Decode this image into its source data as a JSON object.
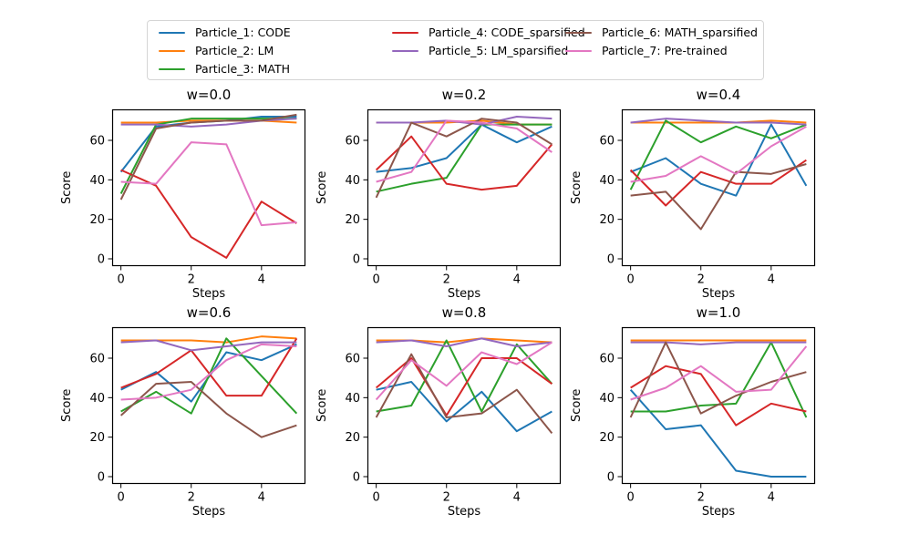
{
  "legend": {
    "position": "top-center",
    "ncol": 3,
    "items": [
      {
        "label": "Particle_1: CODE",
        "color": "#1f77b4"
      },
      {
        "label": "Particle_2: LM",
        "color": "#ff7f0e"
      },
      {
        "label": "Particle_3: MATH",
        "color": "#2ca02c"
      },
      {
        "label": "Particle_4: CODE_sparsified",
        "color": "#d62728"
      },
      {
        "label": "Particle_5: LM_sparsified",
        "color": "#9467bd"
      },
      {
        "label": "Particle_6: MATH_sparsified",
        "color": "#8c564b"
      },
      {
        "label": "Particle_7: Pre-trained",
        "color": "#e377c2"
      }
    ]
  },
  "axes": {
    "xlabel": "Steps",
    "ylabel": "Score",
    "xticks": [
      0,
      2,
      4
    ],
    "yticks": [
      0,
      20,
      40,
      60
    ],
    "xlim": [
      -0.25,
      5.25
    ],
    "ylim": [
      -3.7,
      75.7
    ],
    "grid": false
  },
  "chart_data": [
    {
      "type": "line",
      "title": "w=0.0",
      "xlabel": "Steps",
      "ylabel": "Score",
      "x": [
        0,
        1,
        2,
        3,
        4,
        5
      ],
      "series": [
        {
          "name": "Particle_1: CODE",
          "values": [
            44,
            67,
            69,
            70,
            72,
            72
          ]
        },
        {
          "name": "Particle_2: LM",
          "values": [
            69,
            69,
            70,
            70,
            70,
            69
          ]
        },
        {
          "name": "Particle_3: MATH",
          "values": [
            33,
            68,
            71,
            71,
            71,
            71
          ]
        },
        {
          "name": "Particle_4: CODE_sparsified",
          "values": [
            45,
            37,
            11,
            0.5,
            29,
            18
          ]
        },
        {
          "name": "Particle_5: LM_sparsified",
          "values": [
            68,
            68,
            67,
            68,
            70,
            71
          ]
        },
        {
          "name": "Particle_6: MATH_sparsified",
          "values": [
            30,
            66,
            69,
            70,
            70,
            73
          ]
        },
        {
          "name": "Particle_7: Pre-trained",
          "values": [
            39,
            38,
            59,
            58,
            17,
            18.5
          ]
        }
      ]
    },
    {
      "type": "line",
      "title": "w=0.2",
      "xlabel": "Steps",
      "ylabel": "Score",
      "x": [
        0,
        1,
        2,
        3,
        4,
        5
      ],
      "series": [
        {
          "name": "Particle_1: CODE",
          "values": [
            44,
            46,
            51,
            68,
            59,
            67
          ]
        },
        {
          "name": "Particle_2: LM",
          "values": [
            69,
            69,
            69,
            70,
            68,
            68
          ]
        },
        {
          "name": "Particle_3: MATH",
          "values": [
            34,
            38,
            41,
            68,
            68,
            68
          ]
        },
        {
          "name": "Particle_4: CODE_sparsified",
          "values": [
            45,
            62,
            38,
            35,
            37,
            58
          ]
        },
        {
          "name": "Particle_5: LM_sparsified",
          "values": [
            69,
            69,
            70,
            68,
            72,
            71
          ]
        },
        {
          "name": "Particle_6: MATH_sparsified",
          "values": [
            31,
            69,
            62,
            71,
            69,
            58
          ]
        },
        {
          "name": "Particle_7: Pre-trained",
          "values": [
            39,
            44,
            70,
            69,
            66,
            54
          ]
        }
      ]
    },
    {
      "type": "line",
      "title": "w=0.4",
      "xlabel": "Steps",
      "ylabel": "Score",
      "x": [
        0,
        1,
        2,
        3,
        4,
        5
      ],
      "series": [
        {
          "name": "Particle_1: CODE",
          "values": [
            44,
            51,
            38,
            32,
            68,
            37
          ]
        },
        {
          "name": "Particle_2: LM",
          "values": [
            69,
            69,
            69,
            69,
            70,
            69
          ]
        },
        {
          "name": "Particle_3: MATH",
          "values": [
            35,
            70,
            59,
            67,
            61,
            68
          ]
        },
        {
          "name": "Particle_4: CODE_sparsified",
          "values": [
            45,
            27,
            44,
            38,
            38,
            50
          ]
        },
        {
          "name": "Particle_5: LM_sparsified",
          "values": [
            69,
            71,
            70,
            69,
            69,
            68
          ]
        },
        {
          "name": "Particle_6: MATH_sparsified",
          "values": [
            32,
            34,
            15,
            44,
            43,
            48
          ]
        },
        {
          "name": "Particle_7: Pre-trained",
          "values": [
            39,
            42,
            52,
            43,
            57,
            67
          ]
        }
      ]
    },
    {
      "type": "line",
      "title": "w=0.6",
      "xlabel": "Steps",
      "ylabel": "Score",
      "x": [
        0,
        1,
        2,
        3,
        4,
        5
      ],
      "series": [
        {
          "name": "Particle_1: CODE",
          "values": [
            44,
            53,
            38,
            63,
            59,
            67
          ]
        },
        {
          "name": "Particle_2: LM",
          "values": [
            69,
            69,
            69,
            68,
            71,
            70
          ]
        },
        {
          "name": "Particle_3: MATH",
          "values": [
            33,
            43,
            32,
            70,
            51,
            32
          ]
        },
        {
          "name": "Particle_4: CODE_sparsified",
          "values": [
            45,
            52,
            64,
            41,
            41,
            70
          ]
        },
        {
          "name": "Particle_5: LM_sparsified",
          "values": [
            68,
            69,
            64,
            66,
            68,
            68
          ]
        },
        {
          "name": "Particle_6: MATH_sparsified",
          "values": [
            31,
            47,
            48,
            32,
            20,
            26
          ]
        },
        {
          "name": "Particle_7: Pre-trained",
          "values": [
            39,
            40,
            44,
            59,
            67,
            66
          ]
        }
      ]
    },
    {
      "type": "line",
      "title": "w=0.8",
      "xlabel": "Steps",
      "ylabel": "Score",
      "x": [
        0,
        1,
        2,
        3,
        4,
        5
      ],
      "series": [
        {
          "name": "Particle_1: CODE",
          "values": [
            44,
            48,
            28,
            43,
            23,
            33
          ]
        },
        {
          "name": "Particle_2: LM",
          "values": [
            69,
            69,
            68,
            70,
            69,
            68
          ]
        },
        {
          "name": "Particle_3: MATH",
          "values": [
            33,
            36,
            69,
            33,
            67,
            47
          ]
        },
        {
          "name": "Particle_4: CODE_sparsified",
          "values": [
            45,
            60,
            31,
            60,
            60,
            47
          ]
        },
        {
          "name": "Particle_5: LM_sparsified",
          "values": [
            68,
            69,
            66,
            70,
            66,
            68
          ]
        },
        {
          "name": "Particle_6: MATH_sparsified",
          "values": [
            30,
            62,
            30,
            32,
            44,
            22
          ]
        },
        {
          "name": "Particle_7: Pre-trained",
          "values": [
            39,
            59,
            46,
            63,
            57,
            68
          ]
        }
      ]
    },
    {
      "type": "line",
      "title": "w=1.0",
      "xlabel": "Steps",
      "ylabel": "Score",
      "x": [
        0,
        1,
        2,
        3,
        4,
        5
      ],
      "series": [
        {
          "name": "Particle_1: CODE",
          "values": [
            44,
            24,
            26,
            3,
            0,
            0
          ]
        },
        {
          "name": "Particle_2: LM",
          "values": [
            69,
            69,
            69,
            69,
            69,
            69
          ]
        },
        {
          "name": "Particle_3: MATH",
          "values": [
            33,
            33,
            36,
            37,
            68,
            30
          ]
        },
        {
          "name": "Particle_4: CODE_sparsified",
          "values": [
            45,
            56,
            52,
            26,
            37,
            33
          ]
        },
        {
          "name": "Particle_5: LM_sparsified",
          "values": [
            68,
            68,
            67,
            68,
            68,
            68
          ]
        },
        {
          "name": "Particle_6: MATH_sparsified",
          "values": [
            30,
            68,
            32,
            41,
            48,
            53
          ]
        },
        {
          "name": "Particle_7: Pre-trained",
          "values": [
            39,
            45,
            56,
            43,
            44,
            66
          ]
        }
      ]
    }
  ]
}
